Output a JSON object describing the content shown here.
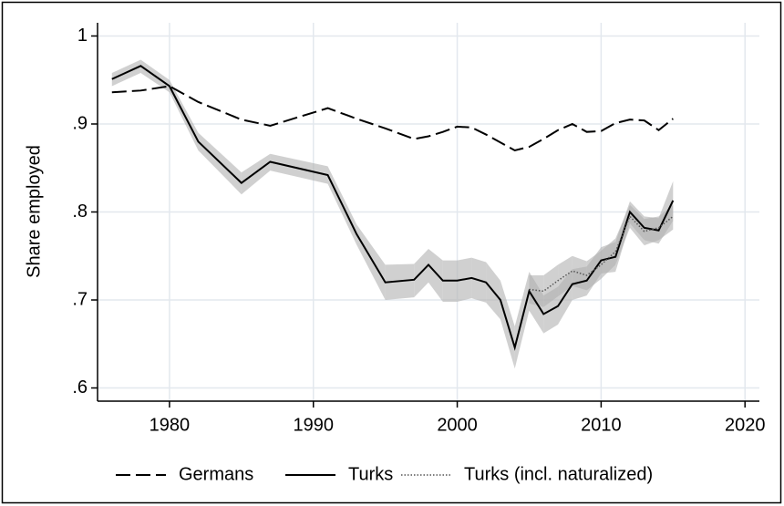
{
  "chart_data": {
    "type": "line",
    "y_label": "Share employed",
    "x": [
      1976,
      1978,
      1980,
      1982,
      1985,
      1987,
      1991,
      1993,
      1995,
      1997,
      1998,
      1999,
      2000,
      2001,
      2002,
      2003,
      2004,
      2005,
      2006,
      2007,
      2008,
      2009,
      2010,
      2011,
      2012,
      2013,
      2014,
      2015
    ],
    "series": [
      {
        "name": "Germans",
        "color": "#000000",
        "dash": "dashed",
        "values": [
          0.936,
          0.938,
          0.943,
          0.925,
          0.905,
          0.898,
          0.918,
          0.906,
          0.895,
          0.883,
          0.886,
          0.891,
          0.897,
          0.896,
          0.888,
          0.879,
          0.87,
          0.874,
          0.883,
          0.893,
          0.9,
          0.891,
          0.892,
          0.901,
          0.905,
          0.904,
          0.893,
          0.906
        ]
      },
      {
        "name": "Turks",
        "color": "#000000",
        "dash": "solid",
        "values": [
          0.951,
          0.966,
          0.943,
          0.88,
          0.833,
          0.857,
          0.842,
          0.775,
          0.72,
          0.723,
          0.74,
          0.722,
          0.722,
          0.725,
          0.72,
          0.7,
          0.646,
          0.71,
          0.684,
          0.693,
          0.718,
          0.722,
          0.745,
          0.749,
          0.8,
          0.782,
          0.779,
          0.813
        ],
        "upper": [
          0.958,
          0.973,
          0.95,
          0.89,
          0.845,
          0.866,
          0.852,
          0.786,
          0.74,
          0.741,
          0.758,
          0.745,
          0.745,
          0.748,
          0.743,
          0.722,
          0.67,
          0.732,
          0.705,
          0.715,
          0.735,
          0.738,
          0.76,
          0.766,
          0.812,
          0.795,
          0.793,
          0.835
        ],
        "lower": [
          0.943,
          0.958,
          0.936,
          0.87,
          0.82,
          0.847,
          0.832,
          0.763,
          0.7,
          0.703,
          0.72,
          0.698,
          0.698,
          0.702,
          0.697,
          0.678,
          0.622,
          0.688,
          0.662,
          0.672,
          0.7,
          0.705,
          0.73,
          0.732,
          0.787,
          0.768,
          0.764,
          0.79
        ]
      },
      {
        "name": "Turks (incl. naturalized)",
        "color": "#555555",
        "dash": "dotted",
        "values": [
          null,
          null,
          null,
          null,
          null,
          null,
          null,
          null,
          null,
          null,
          null,
          null,
          null,
          null,
          null,
          null,
          null,
          0.712,
          0.71,
          0.722,
          0.733,
          0.728,
          0.74,
          0.755,
          0.795,
          0.778,
          0.782,
          0.795
        ],
        "upper": [
          null,
          null,
          null,
          null,
          null,
          null,
          null,
          null,
          null,
          null,
          null,
          null,
          null,
          null,
          null,
          null,
          null,
          0.728,
          0.728,
          0.74,
          0.75,
          0.744,
          0.756,
          0.77,
          0.808,
          0.792,
          0.795,
          0.808
        ],
        "lower": [
          null,
          null,
          null,
          null,
          null,
          null,
          null,
          null,
          null,
          null,
          null,
          null,
          null,
          null,
          null,
          null,
          null,
          0.696,
          0.692,
          0.704,
          0.716,
          0.711,
          0.724,
          0.74,
          0.782,
          0.762,
          0.768,
          0.78
        ]
      }
    ],
    "band_color": "#b0b0b0",
    "xlim": [
      1975,
      2021
    ],
    "xticks": [
      1980,
      1990,
      2000,
      2010,
      2020
    ],
    "ylim": [
      0.585,
      1.015
    ],
    "yticks": [
      {
        "value": 0.6,
        "label": ".6"
      },
      {
        "value": 0.7,
        "label": ".7"
      },
      {
        "value": 0.8,
        "label": ".8"
      },
      {
        "value": 0.9,
        "label": ".9"
      },
      1
    ],
    "grid": true,
    "legend": "bottom"
  }
}
